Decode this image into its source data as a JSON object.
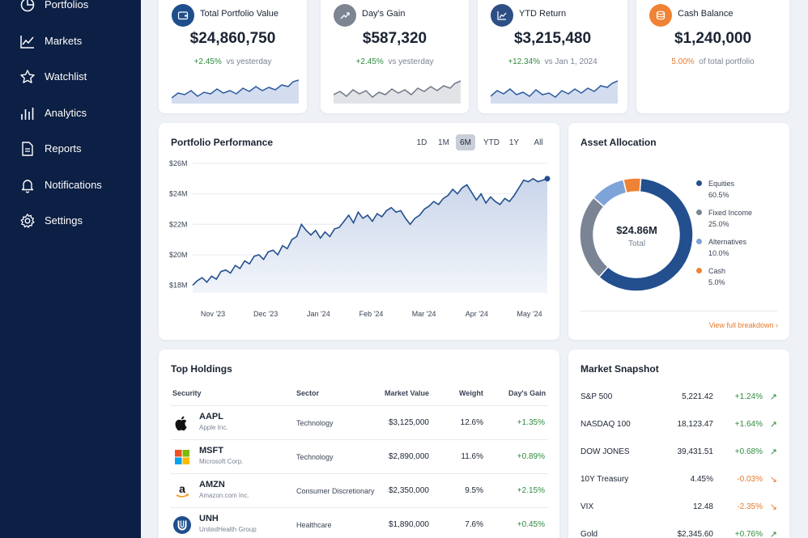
{
  "sidebar": {
    "items": [
      {
        "label": "Portfolios",
        "icon": "pie-chart-icon"
      },
      {
        "label": "Markets",
        "icon": "trend-line-icon"
      },
      {
        "label": "Watchlist",
        "icon": "star-icon"
      },
      {
        "label": "Analytics",
        "icon": "bar-chart-icon"
      },
      {
        "label": "Reports",
        "icon": "document-icon"
      },
      {
        "label": "Notifications",
        "icon": "bell-icon"
      },
      {
        "label": "Settings",
        "icon": "gear-icon"
      }
    ]
  },
  "kpis": [
    {
      "label": "Total Portfolio Value",
      "value": "$24,860,750",
      "delta": "+2.45%",
      "note": "vs yesterday",
      "icon": "wallet-icon",
      "color": "#1f4e8c"
    },
    {
      "label": "Day's Gain",
      "value": "$587,320",
      "delta": "+2.45%",
      "note": "vs yesterday",
      "icon": "trend-up-icon",
      "color": "#7d8593"
    },
    {
      "label": "YTD Return",
      "value": "$3,215,480",
      "delta": "+12.34%",
      "note": "vs Jan 1, 2024",
      "icon": "line-chart-icon",
      "color": "#2d4f85"
    },
    {
      "label": "Cash Balance",
      "value": "$1,240,000",
      "delta": "5.00%",
      "note": "of total portfolio",
      "icon": "coins-icon",
      "color": "#ef8234"
    }
  ],
  "performance": {
    "title": "Portfolio Performance",
    "ranges": [
      "1D",
      "1M",
      "6M",
      "YTD",
      "1Y",
      "All"
    ],
    "active_range": "6M"
  },
  "chart_data": {
    "type": "line",
    "title": "Portfolio Performance",
    "ylabel": "",
    "xlabel": "",
    "ylim": [
      17500000,
      26000000
    ],
    "y_ticks": [
      "$18M",
      "$20M",
      "$22M",
      "$24M",
      "$26M"
    ],
    "y_tick_values": [
      18000000,
      20000000,
      22000000,
      24000000,
      26000000
    ],
    "x_ticks": [
      "Nov '23",
      "Dec '23",
      "Jan '24",
      "Feb '24",
      "Mar '24",
      "Apr '24",
      "May '24"
    ],
    "grid": true,
    "series": [
      {
        "values": [
          18.0,
          18.3,
          18.5,
          18.2,
          18.6,
          18.4,
          18.9,
          19.0,
          18.8,
          19.3,
          19.1,
          19.6,
          19.4,
          19.9,
          20.0,
          19.7,
          20.2,
          20.3,
          20.0,
          20.6,
          20.4,
          21.0,
          21.2,
          22.0,
          21.6,
          21.3,
          21.6,
          21.1,
          21.5,
          21.2,
          21.7,
          21.8,
          22.2,
          22.6,
          22.1,
          22.8,
          22.4,
          22.6,
          22.2,
          22.7,
          22.5,
          22.9,
          23.1,
          22.8,
          22.9,
          22.4,
          22.0,
          22.4,
          22.6,
          23.0,
          23.2,
          23.5,
          23.3,
          23.7,
          23.9,
          24.3,
          24.0,
          24.4,
          24.6,
          24.1,
          23.6,
          24.0,
          23.4,
          23.8,
          23.5,
          23.3,
          23.7,
          23.5,
          23.9,
          24.4,
          24.9,
          24.8,
          25.0,
          24.8,
          24.9,
          25.0
        ],
        "unit": "$M"
      }
    ]
  },
  "allocation": {
    "title": "Asset Allocation",
    "total_value": "$24.86M",
    "total_label": "Total",
    "link": "View full breakdown",
    "segments": [
      {
        "name": "Equities",
        "pct": "60.5%",
        "value": 60.5,
        "color": "#234f8f"
      },
      {
        "name": "Fixed Income",
        "pct": "25.0%",
        "value": 25.0,
        "color": "#7b8494"
      },
      {
        "name": "Alternatives",
        "pct": "10.0%",
        "value": 10.0,
        "color": "#7ea3d9"
      },
      {
        "name": "Cash",
        "pct": "5.0%",
        "value": 5.0,
        "color": "#ef8234"
      }
    ]
  },
  "holdings": {
    "title": "Top Holdings",
    "columns": [
      "Security",
      "Sector",
      "Market Value",
      "Weight",
      "Day's Gain"
    ],
    "rows": [
      {
        "ticker": "AAPL",
        "company": "Apple Inc.",
        "sector": "Technology",
        "market_value": "$3,125,000",
        "weight": "12.6%",
        "gain": "+1.35%",
        "logo": "apple-logo-icon"
      },
      {
        "ticker": "MSFT",
        "company": "Microsoft Corp.",
        "sector": "Technology",
        "market_value": "$2,890,000",
        "weight": "11.6%",
        "gain": "+0.89%",
        "logo": "microsoft-logo-icon"
      },
      {
        "ticker": "AMZN",
        "company": "Amazon.com Inc.",
        "sector": "Consumer Discretionary",
        "market_value": "$2,350,000",
        "weight": "9.5%",
        "gain": "+2.15%",
        "logo": "amazon-logo-icon"
      },
      {
        "ticker": "UNH",
        "company": "UnitedHealth Group",
        "sector": "Healthcare",
        "market_value": "$1,890,000",
        "weight": "7.6%",
        "gain": "+0.45%",
        "logo": "unh-logo-icon"
      }
    ]
  },
  "snapshot": {
    "title": "Market Snapshot",
    "rows": [
      {
        "name": "S&P 500",
        "value": "5,221.42",
        "change": "+1.24%",
        "dir": "up"
      },
      {
        "name": "NASDAQ 100",
        "value": "18,123.47",
        "change": "+1.64%",
        "dir": "up"
      },
      {
        "name": "DOW JONES",
        "value": "39,431.51",
        "change": "+0.68%",
        "dir": "up"
      },
      {
        "name": "10Y Treasury",
        "value": "4.45%",
        "change": "-0.03%",
        "dir": "down"
      },
      {
        "name": "VIX",
        "value": "12.48",
        "change": "-2.35%",
        "dir": "down"
      },
      {
        "name": "Gold",
        "value": "$2,345.60",
        "change": "+0.76%",
        "dir": "up"
      }
    ]
  }
}
